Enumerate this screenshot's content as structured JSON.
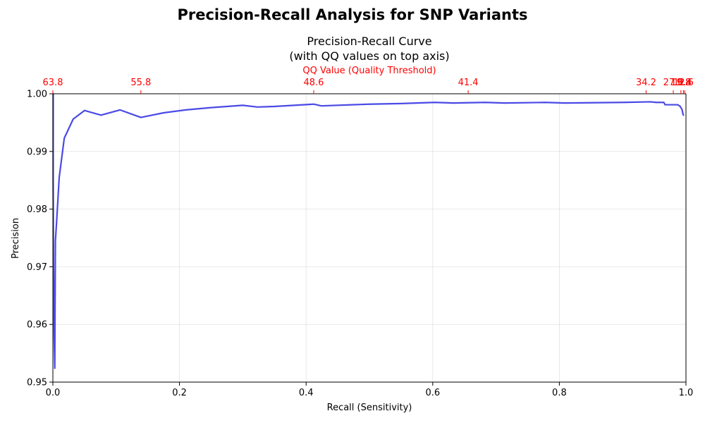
{
  "chart_data": {
    "type": "line",
    "suptitle": "Precision-Recall Analysis for SNP Variants",
    "title_line1": "Precision-Recall Curve",
    "title_line2": "(with QQ values on top axis)",
    "xlabel": "Recall (Sensitivity)",
    "ylabel": "Precision",
    "xlim": [
      0.0,
      1.0
    ],
    "ylim": [
      0.95,
      1.0
    ],
    "x_ticks": [
      "0.0",
      "0.2",
      "0.4",
      "0.6",
      "0.8",
      "1.0"
    ],
    "y_ticks": [
      "0.95",
      "0.96",
      "0.97",
      "0.98",
      "0.99",
      "1.00"
    ],
    "grid": true,
    "top_axis": {
      "label": "QQ Value (Quality Threshold)",
      "color": "#ff0000",
      "ticks": [
        {
          "recall": 0.0,
          "label": "63.8"
        },
        {
          "recall": 0.139,
          "label": "55.8"
        },
        {
          "recall": 0.412,
          "label": "48.6"
        },
        {
          "recall": 0.656,
          "label": "41.4"
        },
        {
          "recall": 0.937,
          "label": "34.2"
        },
        {
          "recall": 0.98,
          "label": "27.0"
        },
        {
          "recall": 0.992,
          "label": "19.8"
        },
        {
          "recall": 0.996,
          "label": "12.6"
        },
        {
          "recall": 0.998,
          "label": "5.4"
        }
      ]
    },
    "series": [
      {
        "color": "#4a4ae6",
        "x": [
          0.0005,
          0.0005,
          0.001,
          0.002,
          0.003,
          0.004,
          0.006,
          0.01,
          0.018,
          0.032,
          0.05,
          0.076,
          0.106,
          0.139,
          0.175,
          0.21,
          0.25,
          0.3,
          0.323,
          0.35,
          0.412,
          0.424,
          0.5,
          0.55,
          0.603,
          0.632,
          0.683,
          0.713,
          0.778,
          0.808,
          0.9,
          0.944,
          0.953,
          0.965,
          0.967,
          0.977,
          0.987,
          0.991,
          0.994,
          0.995,
          0.996
        ],
        "y": [
          1.0,
          0.985,
          0.97,
          0.958,
          0.9524,
          0.9745,
          0.978,
          0.9855,
          0.9923,
          0.9956,
          0.9971,
          0.9963,
          0.9972,
          0.9959,
          0.9967,
          0.9972,
          0.9976,
          0.998,
          0.9977,
          0.9978,
          0.9982,
          0.9979,
          0.9982,
          0.9983,
          0.9985,
          0.9984,
          0.9985,
          0.9984,
          0.9985,
          0.9984,
          0.9985,
          0.9986,
          0.9985,
          0.9985,
          0.9981,
          0.9981,
          0.9981,
          0.9978,
          0.9972,
          0.9966,
          0.9963
        ]
      }
    ]
  }
}
